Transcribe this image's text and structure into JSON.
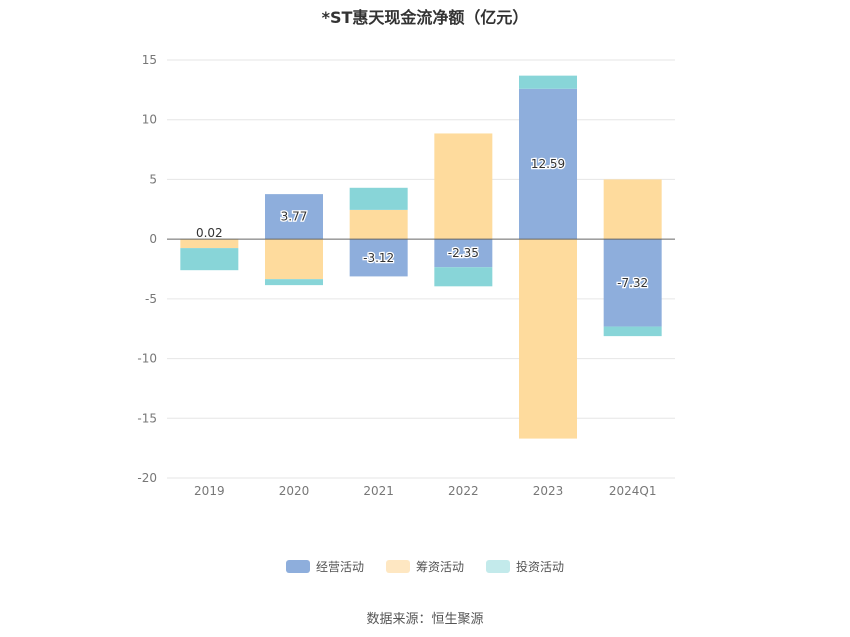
{
  "chart_data": {
    "type": "bar",
    "stacked": true,
    "title": "*ST惠天现金流净额（亿元）",
    "categories": [
      "2019",
      "2020",
      "2021",
      "2022",
      "2023",
      "2024Q1"
    ],
    "ylim": [
      -20,
      15
    ],
    "yticks": [
      15,
      10,
      5,
      0,
      -5,
      -10,
      -15,
      -20
    ],
    "grid": true,
    "legend_position": "bottom",
    "series": [
      {
        "name": "经营活动",
        "color": "#8eaedc",
        "values": [
          0.02,
          3.77,
          -3.12,
          -2.35,
          12.59,
          -7.32
        ]
      },
      {
        "name": "筹资活动",
        "color": "#fedb9d",
        "values": [
          -0.75,
          -3.35,
          2.45,
          8.85,
          -16.7,
          5.0
        ]
      },
      {
        "name": "投资活动",
        "color": "#88d5d8",
        "values": [
          -1.85,
          -0.5,
          1.85,
          -1.6,
          1.1,
          -0.8
        ]
      }
    ],
    "data_labels": {
      "series": "经营活动",
      "labels": [
        "0.02",
        "3.77",
        "-3.12",
        "-2.35",
        "12.59",
        "-7.32"
      ]
    }
  },
  "legend": {
    "items": [
      {
        "label": "经营活动",
        "color": "#8eaedc"
      },
      {
        "label": "筹资活动",
        "color": "#fedb9d"
      },
      {
        "label": "投资活动",
        "color": "#88d5d8"
      }
    ]
  },
  "footer": {
    "source": "数据来源：恒生聚源"
  }
}
